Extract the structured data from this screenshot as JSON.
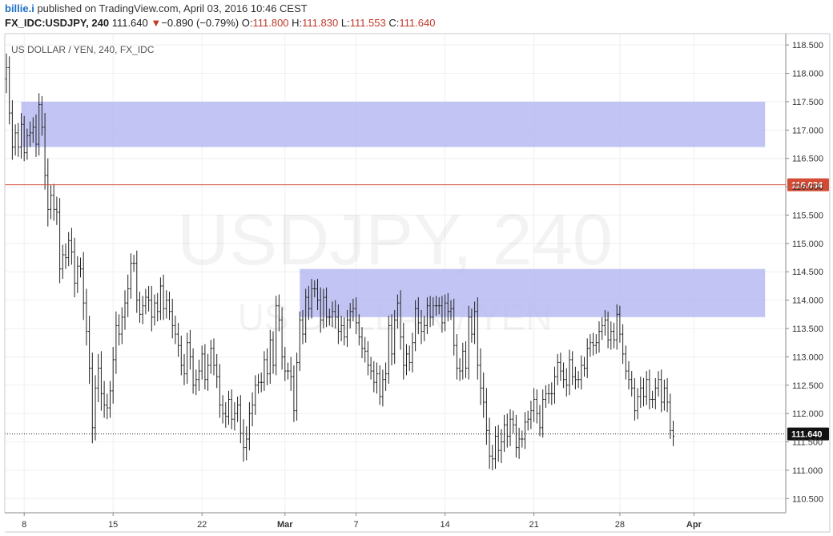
{
  "header": {
    "author": "billie.i",
    "published_text": " published on TradingView.com, April 03, 2016 10:46 CEST",
    "symbol": "FX_IDC:USDJPY, 240",
    "last": "111.640",
    "change_arrow": "▼",
    "change": "−0.890 (−0.79%)",
    "o_label": "O:",
    "o_value": "111.800",
    "h_label": "H:",
    "h_value": "111.830",
    "l_label": "L:",
    "l_value": "111.553",
    "c_label": "C:",
    "c_value": "111.640"
  },
  "chart_data": {
    "type": "ohlc",
    "title": "US DOLLAR / YEN, 240, FX_IDC",
    "watermark": "USDJPY, 240",
    "watermark_sub": "US DOLLAR / YEN",
    "y_range": [
      110.25,
      118.7
    ],
    "y_ticks": [
      "118.500",
      "118.000",
      "117.500",
      "117.000",
      "116.500",
      "116.000",
      "115.500",
      "115.000",
      "114.500",
      "114.000",
      "113.500",
      "113.000",
      "112.500",
      "112.000",
      "111.500",
      "111.000",
      "110.500"
    ],
    "x_ticks": [
      {
        "label": "8",
        "bar": 6,
        "bold": false
      },
      {
        "label": "15",
        "bar": 36,
        "bold": false
      },
      {
        "label": "22",
        "bar": 66,
        "bold": false
      },
      {
        "label": "Mar",
        "bar": 94,
        "bold": true
      },
      {
        "label": "7",
        "bar": 118,
        "bold": false
      },
      {
        "label": "14",
        "bar": 148,
        "bold": false
      },
      {
        "label": "21",
        "bar": 178,
        "bold": false
      },
      {
        "label": "28",
        "bar": 207,
        "bold": false
      },
      {
        "label": "Apr",
        "bar": 232,
        "bold": true
      }
    ],
    "zones": [
      {
        "bar_start": 5,
        "bar_end": 256,
        "low": 116.7,
        "high": 117.5,
        "color": "#b3b6f0"
      },
      {
        "bar_start": 99,
        "bar_end": 256,
        "low": 113.7,
        "high": 114.55,
        "color": "#b3b6f0"
      }
    ],
    "hline": {
      "value": 116.034,
      "label": "116.034",
      "color": "#d44b35"
    },
    "last_price": {
      "value": 111.64,
      "label": "111.640"
    },
    "closes": [
      118.1,
      117.3,
      116.7,
      116.95,
      116.7,
      117.1,
      116.6,
      116.9,
      116.95,
      117.05,
      116.75,
      117.45,
      117.05,
      116.2,
      115.6,
      115.85,
      115.6,
      115.55,
      114.55,
      114.8,
      114.75,
      115.05,
      114.85,
      114.3,
      114.6,
      114.55,
      113.95,
      113.45,
      112.8,
      111.75,
      112.45,
      112.8,
      112.35,
      112.15,
      112.1,
      112.4,
      112.95,
      113.55,
      113.4,
      113.7,
      113.95,
      114.2,
      114.65,
      114.65,
      114.0,
      113.75,
      113.9,
      114.05,
      114.0,
      113.7,
      113.95,
      113.8,
      114.25,
      113.85,
      114.0,
      113.8,
      113.55,
      113.4,
      113.2,
      112.85,
      112.7,
      113.25,
      113.0,
      112.5,
      112.6,
      112.75,
      113.05,
      112.6,
      112.85,
      113.15,
      112.85,
      112.65,
      112.15,
      112.0,
      111.95,
      112.25,
      111.9,
      112.0,
      112.15,
      111.65,
      111.4,
      111.55,
      112.0,
      112.15,
      112.5,
      112.55,
      112.55,
      112.95,
      112.7,
      113.3,
      112.85,
      113.9,
      113.65,
      113.0,
      112.75,
      112.75,
      112.65,
      112.05,
      112.9,
      113.65,
      113.4,
      114.05,
      113.85,
      114.2,
      114.2,
      114.0,
      113.65,
      114.05,
      113.7,
      113.7,
      113.8,
      113.7,
      113.45,
      113.55,
      113.35,
      113.65,
      113.8,
      113.85,
      113.6,
      113.35,
      113.15,
      113.1,
      112.85,
      112.75,
      112.55,
      112.7,
      112.3,
      112.6,
      112.7,
      113.55,
      113.05,
      113.65,
      113.95,
      113.35,
      112.85,
      113.05,
      112.9,
      113.25,
      113.85,
      113.6,
      113.45,
      113.55,
      113.9,
      113.7,
      113.9,
      113.9,
      113.9,
      113.6,
      113.95,
      113.8,
      113.85,
      113.2,
      112.8,
      112.75,
      113.1,
      112.8,
      113.7,
      113.4,
      113.8,
      112.85,
      112.45,
      112.2,
      111.7,
      111.25,
      111.2,
      111.6,
      111.35,
      111.5,
      111.8,
      111.6,
      111.9,
      111.8,
      111.4,
      111.55,
      111.55,
      111.85,
      111.9,
      112.05,
      112.25,
      112.0,
      111.75,
      112.25,
      112.35,
      112.35,
      112.35,
      112.65,
      112.9,
      112.75,
      112.6,
      112.5,
      112.95,
      112.65,
      112.6,
      112.6,
      112.85,
      112.8,
      113.15,
      113.25,
      113.2,
      113.25,
      113.45,
      113.55,
      113.65,
      113.3,
      113.45,
      113.3,
      113.75,
      113.4,
      113.05,
      112.75,
      112.6,
      112.45,
      112.05,
      112.3,
      112.45,
      112.3,
      112.6,
      112.25,
      112.25,
      112.45,
      112.6,
      112.2,
      112.45,
      112.2,
      111.7,
      111.6
    ],
    "spans": [
      0.5,
      0.4,
      0.45,
      0.3,
      0.35,
      0.4,
      0.3,
      0.25,
      0.4,
      0.35,
      0.45,
      0.4,
      0.3,
      0.5,
      0.6,
      0.35,
      0.4,
      0.45,
      0.5,
      0.35,
      0.4,
      0.3,
      0.45,
      0.5,
      0.35,
      0.3,
      0.6,
      0.5,
      0.55,
      0.55,
      0.45,
      0.5,
      0.6,
      0.45,
      0.4,
      0.35,
      0.45,
      0.5,
      0.4,
      0.35,
      0.45,
      0.5,
      0.35,
      0.3,
      0.45,
      0.3,
      0.35,
      0.3,
      0.4,
      0.5,
      0.3,
      0.35,
      0.3,
      0.4,
      0.35,
      0.3,
      0.45,
      0.35,
      0.4,
      0.35,
      0.4,
      0.35,
      0.45,
      0.3,
      0.35,
      0.4,
      0.3,
      0.35,
      0.4,
      0.3,
      0.35,
      0.4,
      0.45,
      0.35,
      0.4,
      0.3,
      0.35,
      0.4,
      0.3,
      0.35,
      0.5,
      0.45,
      0.4,
      0.45,
      0.35,
      0.3,
      0.35,
      0.3,
      0.4,
      0.35,
      0.3,
      0.35,
      0.4,
      0.45,
      0.35,
      0.3,
      0.5,
      0.4,
      0.35,
      0.3,
      0.35,
      0.3,
      0.4,
      0.35,
      0.3,
      0.35,
      0.45,
      0.3,
      0.35,
      0.3,
      0.35,
      0.4,
      0.45,
      0.35,
      0.3,
      0.35,
      0.3,
      0.35,
      0.4,
      0.3,
      0.35,
      0.4,
      0.35,
      0.3,
      0.35,
      0.4,
      0.3,
      0.35,
      0.4,
      0.35,
      0.4,
      0.35,
      0.3,
      0.45,
      0.5,
      0.35,
      0.3,
      0.35,
      0.3,
      0.4,
      0.45,
      0.35,
      0.3,
      0.35,
      0.3,
      0.35,
      0.3,
      0.35,
      0.3,
      0.35,
      0.3,
      0.35,
      0.4,
      0.35,
      0.3,
      0.35,
      0.4,
      0.3,
      0.35,
      0.5,
      0.6,
      0.55,
      0.5,
      0.45,
      0.4,
      0.35,
      0.4,
      0.45,
      0.35,
      0.4,
      0.35,
      0.3,
      0.35,
      0.4,
      0.3,
      0.35,
      0.3,
      0.35,
      0.4,
      0.35,
      0.3,
      0.35,
      0.3,
      0.35,
      0.4,
      0.35,
      0.3,
      0.35,
      0.3,
      0.4,
      0.35,
      0.3,
      0.35,
      0.3,
      0.35,
      0.3,
      0.35,
      0.3,
      0.35,
      0.3,
      0.35,
      0.3,
      0.35,
      0.3,
      0.35,
      0.3,
      0.35,
      0.3,
      0.35,
      0.3,
      0.35,
      0.3,
      0.35,
      0.3,
      0.4,
      0.35,
      0.3,
      0.35,
      0.3,
      0.35,
      0.3,
      0.35,
      0.3,
      0.35,
      0.3,
      0.35,
      0.3,
      0.35,
      0.3,
      0.35,
      0.3,
      0.35,
      0.4,
      0.3,
      0.35,
      0.3,
      0.35
    ]
  }
}
